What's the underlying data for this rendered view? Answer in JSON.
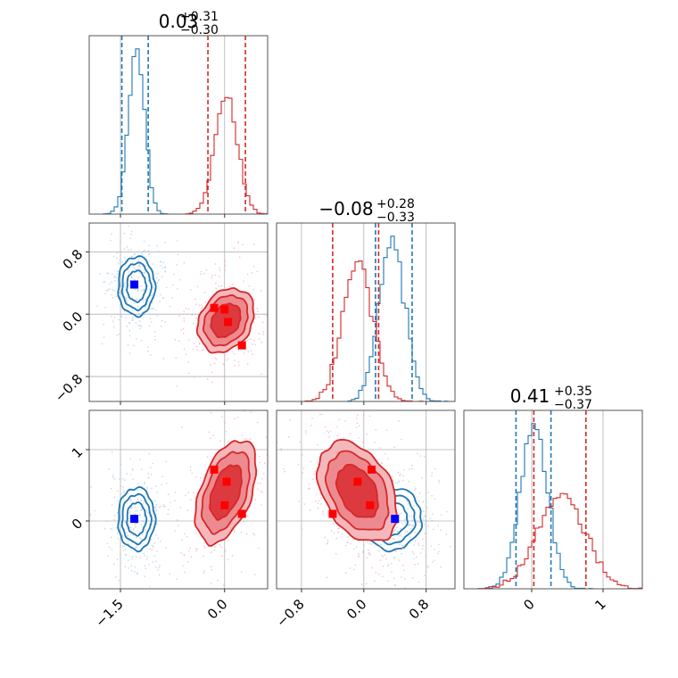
{
  "colors": {
    "blue": "#1f77b4",
    "red": "#d62728",
    "blue_marker": "#0000ff",
    "red_marker": "#ff0000",
    "grid": "#b0b0b0"
  },
  "titles": [
    {
      "main": "0.03",
      "plus": "+0.31",
      "minus": "−0.30"
    },
    {
      "main": "−0.08",
      "plus": "+0.28",
      "minus": "−0.33"
    },
    {
      "main": "0.41",
      "plus": "+0.35",
      "minus": "−0.37"
    }
  ],
  "ticks": {
    "p0": [
      {
        "v": -1.5,
        "label": "−1.5"
      },
      {
        "v": 0.0,
        "label": "0.0"
      }
    ],
    "p1": [
      {
        "v": -0.8,
        "label": "−0.8"
      },
      {
        "v": 0.0,
        "label": "0.0"
      },
      {
        "v": 0.8,
        "label": "0.8"
      }
    ],
    "p2": [
      {
        "v": 0,
        "label": "0"
      },
      {
        "v": 1,
        "label": "1"
      }
    ]
  },
  "chart_data": {
    "type": "corner",
    "ranges": {
      "p0": [
        -1.95,
        0.62
      ],
      "p1": [
        -1.12,
        1.17
      ],
      "p2": [
        -0.95,
        1.55
      ]
    },
    "grid": true,
    "quantiles": {
      "blue": {
        "p0": [
          -1.48,
          -1.1
        ],
        "p1": [
          0.15,
          0.62
        ],
        "p2": [
          -0.22,
          0.27
        ]
      },
      "red": {
        "p0": [
          -0.24,
          0.3
        ],
        "p1": [
          -0.4,
          0.19
        ],
        "p2": [
          0.03,
          0.76
        ]
      }
    },
    "marginals": {
      "blue": {
        "p0": {
          "mean": -1.27,
          "sd": 0.115
        },
        "p1": {
          "mean": 0.36,
          "sd": 0.165
        },
        "p2": {
          "mean": 0.03,
          "sd": 0.19
        }
      },
      "red": {
        "p0": {
          "mean": 0.02,
          "sd": 0.16
        },
        "p1": {
          "mean": -0.08,
          "sd": 0.19
        },
        "p2": {
          "mean": 0.41,
          "sd": 0.33
        }
      }
    },
    "markers": {
      "blue": [
        {
          "panel": "p0p1",
          "x": -1.3,
          "y": 0.38
        },
        {
          "panel": "p0p2",
          "x": -1.3,
          "y": 0.03
        },
        {
          "panel": "p1p2",
          "x": 0.4,
          "y": 0.03
        }
      ],
      "red": [
        {
          "panel": "p0p1",
          "x": -0.15,
          "y": 0.08
        },
        {
          "panel": "p0p1",
          "x": 0.0,
          "y": 0.06
        },
        {
          "panel": "p0p1",
          "x": 0.05,
          "y": -0.1
        },
        {
          "panel": "p0p1",
          "x": 0.25,
          "y": -0.4
        },
        {
          "panel": "p0p2",
          "x": -0.15,
          "y": 0.72
        },
        {
          "panel": "p0p2",
          "x": 0.03,
          "y": 0.55
        },
        {
          "panel": "p0p2",
          "x": 0.0,
          "y": 0.22
        },
        {
          "panel": "p0p2",
          "x": 0.25,
          "y": 0.1
        },
        {
          "panel": "p1p2",
          "x": -0.4,
          "y": 0.1
        },
        {
          "panel": "p1p2",
          "x": -0.08,
          "y": 0.55
        },
        {
          "panel": "p1p2",
          "x": 0.1,
          "y": 0.72
        },
        {
          "panel": "p1p2",
          "x": 0.08,
          "y": 0.22
        }
      ]
    }
  }
}
